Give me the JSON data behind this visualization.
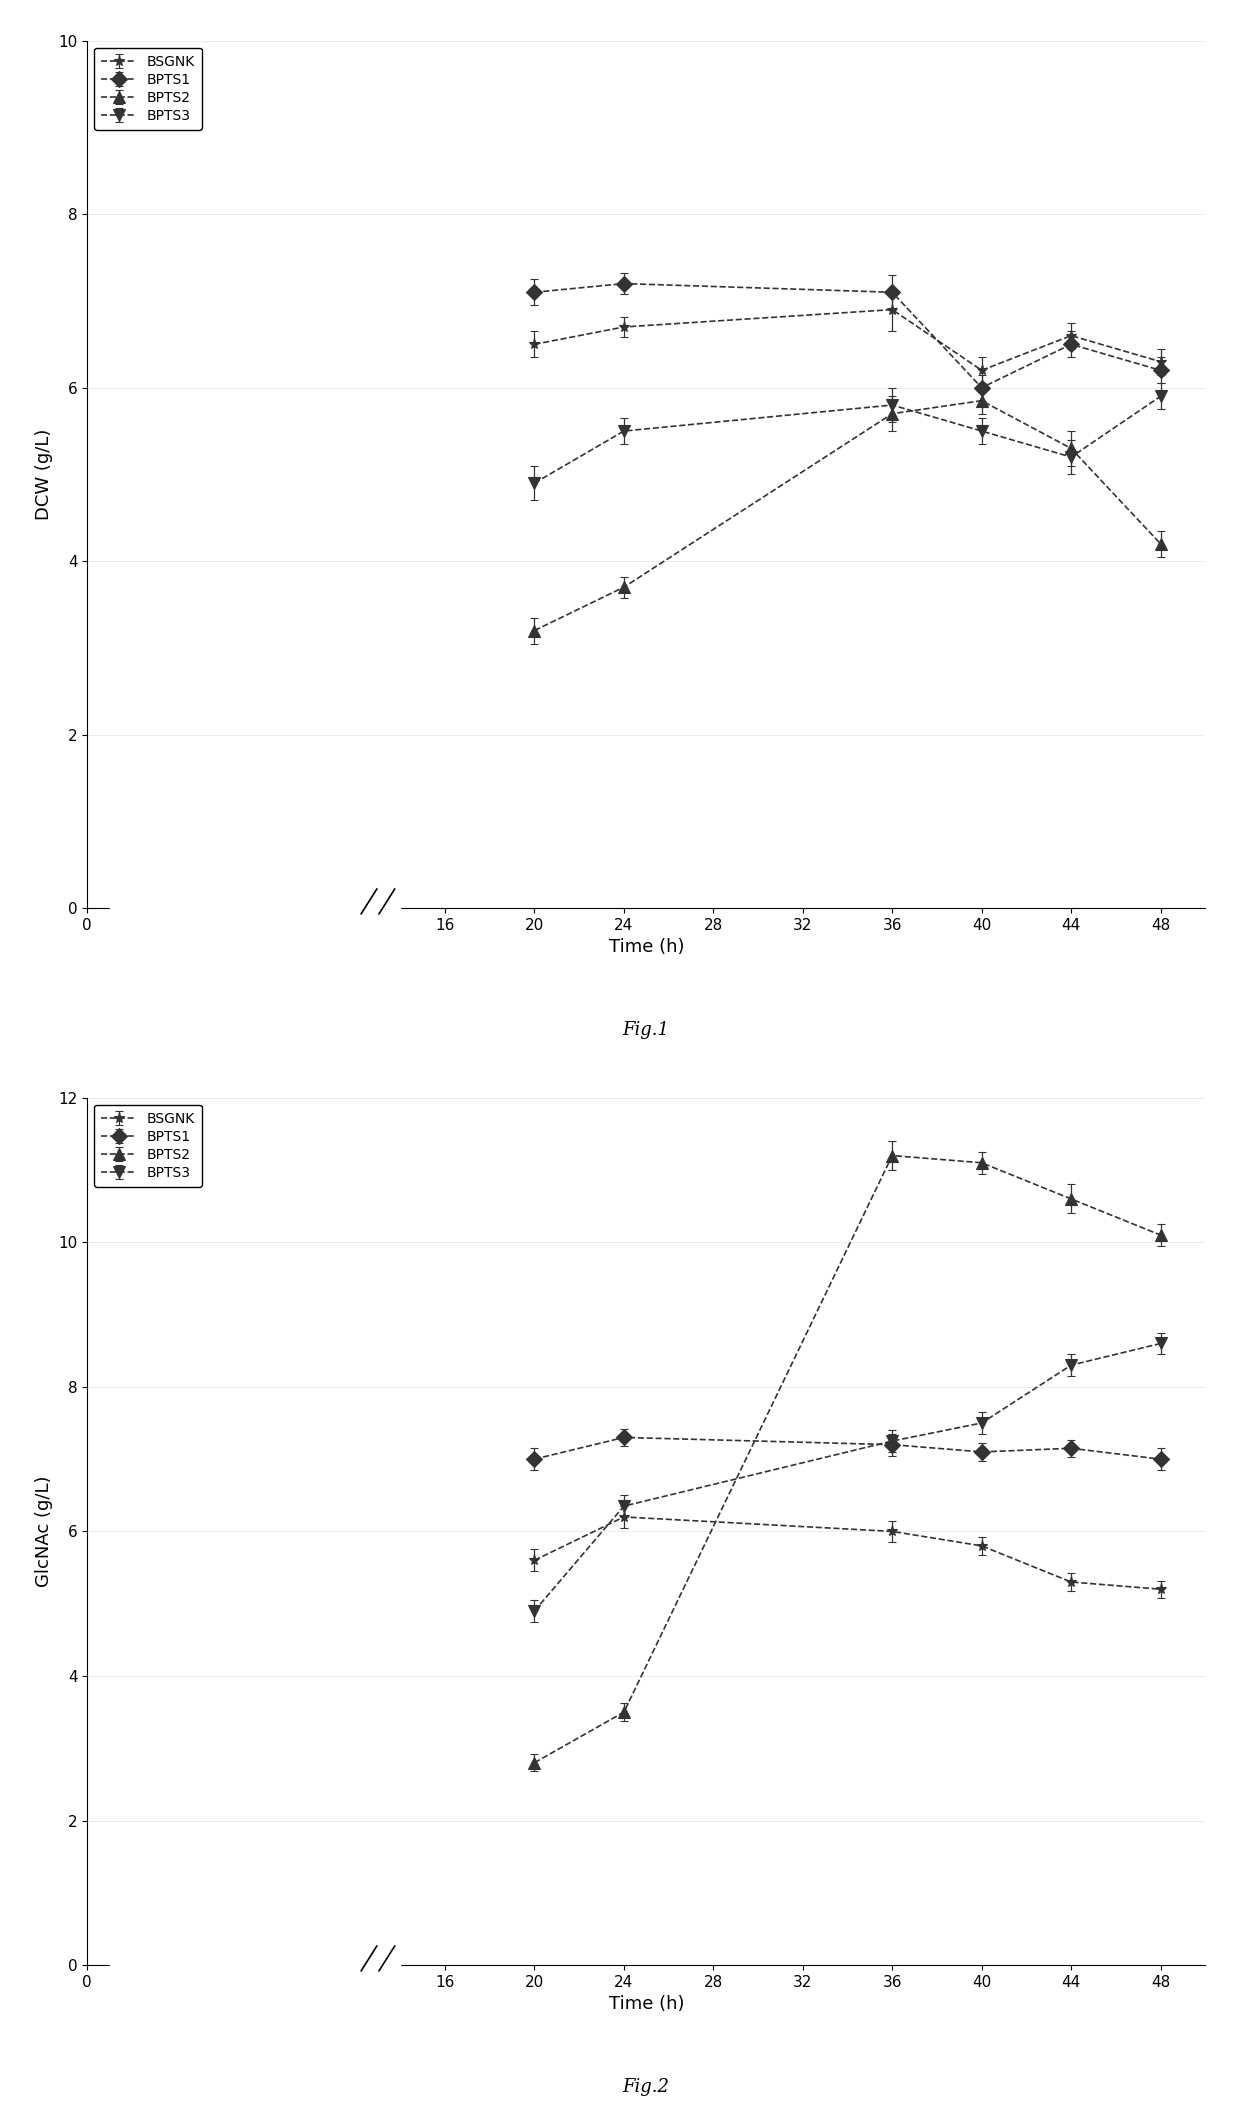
{
  "fig1": {
    "title": "Fig.1",
    "ylabel": "DCW (g/L)",
    "xlabel": "Time (h)",
    "ylim": [
      0,
      10
    ],
    "yticks": [
      0,
      2,
      4,
      6,
      8,
      10
    ],
    "xticks": [
      0,
      16,
      20,
      24,
      28,
      32,
      36,
      40,
      44,
      48
    ],
    "x": [
      20,
      24,
      36,
      40,
      44,
      48
    ],
    "series": [
      {
        "label": "BSGNK",
        "y": [
          6.5,
          6.7,
          6.9,
          6.2,
          6.6,
          6.3
        ],
        "yerr": [
          0.15,
          0.12,
          0.25,
          0.15,
          0.15,
          0.15
        ],
        "marker": "*",
        "linestyle": "--",
        "color": "#333333"
      },
      {
        "label": "BPTS1",
        "y": [
          7.1,
          7.2,
          7.1,
          6.0,
          6.5,
          6.2
        ],
        "yerr": [
          0.15,
          0.12,
          0.2,
          0.15,
          0.15,
          0.15
        ],
        "marker": "D",
        "linestyle": "--",
        "color": "#333333"
      },
      {
        "label": "BPTS2",
        "y": [
          3.2,
          3.7,
          5.7,
          5.85,
          5.3,
          4.2
        ],
        "yerr": [
          0.15,
          0.12,
          0.2,
          0.15,
          0.2,
          0.15
        ],
        "marker": "^",
        "linestyle": "--",
        "color": "#333333"
      },
      {
        "label": "BPTS3",
        "y": [
          4.9,
          5.5,
          5.8,
          5.5,
          5.2,
          5.9
        ],
        "yerr": [
          0.2,
          0.15,
          0.2,
          0.15,
          0.2,
          0.15
        ],
        "marker": "v",
        "linestyle": "--",
        "color": "#333333"
      }
    ]
  },
  "fig2": {
    "title": "Fig.2",
    "ylabel": "GlcNAc (g/L)",
    "xlabel": "Time (h)",
    "ylim": [
      0,
      12
    ],
    "yticks": [
      0,
      2,
      4,
      6,
      8,
      10,
      12
    ],
    "xticks": [
      0,
      16,
      20,
      24,
      28,
      32,
      36,
      40,
      44,
      48
    ],
    "x": [
      20,
      24,
      36,
      40,
      44,
      48
    ],
    "series": [
      {
        "label": "BSGNK",
        "y": [
          5.6,
          6.2,
          6.0,
          5.8,
          5.3,
          5.2
        ],
        "yerr": [
          0.15,
          0.15,
          0.15,
          0.12,
          0.12,
          0.12
        ],
        "marker": "*",
        "linestyle": "--",
        "color": "#333333"
      },
      {
        "label": "BPTS1",
        "y": [
          7.0,
          7.3,
          7.2,
          7.1,
          7.15,
          7.0
        ],
        "yerr": [
          0.15,
          0.12,
          0.15,
          0.12,
          0.12,
          0.15
        ],
        "marker": "D",
        "linestyle": "--",
        "color": "#333333"
      },
      {
        "label": "BPTS2",
        "y": [
          2.8,
          3.5,
          11.2,
          11.1,
          10.6,
          10.1
        ],
        "yerr": [
          0.12,
          0.12,
          0.2,
          0.15,
          0.2,
          0.15
        ],
        "marker": "^",
        "linestyle": "--",
        "color": "#333333"
      },
      {
        "label": "BPTS3",
        "y": [
          4.9,
          6.35,
          7.25,
          7.5,
          8.3,
          8.6
        ],
        "yerr": [
          0.15,
          0.15,
          0.15,
          0.15,
          0.15,
          0.15
        ],
        "marker": "v",
        "linestyle": "--",
        "color": "#333333"
      }
    ]
  },
  "marker_size": 8,
  "linewidth": 1.2,
  "capsize": 3,
  "legend_fontsize": 10,
  "axis_label_fontsize": 13,
  "tick_fontsize": 11,
  "fig_label_fontsize": 13
}
